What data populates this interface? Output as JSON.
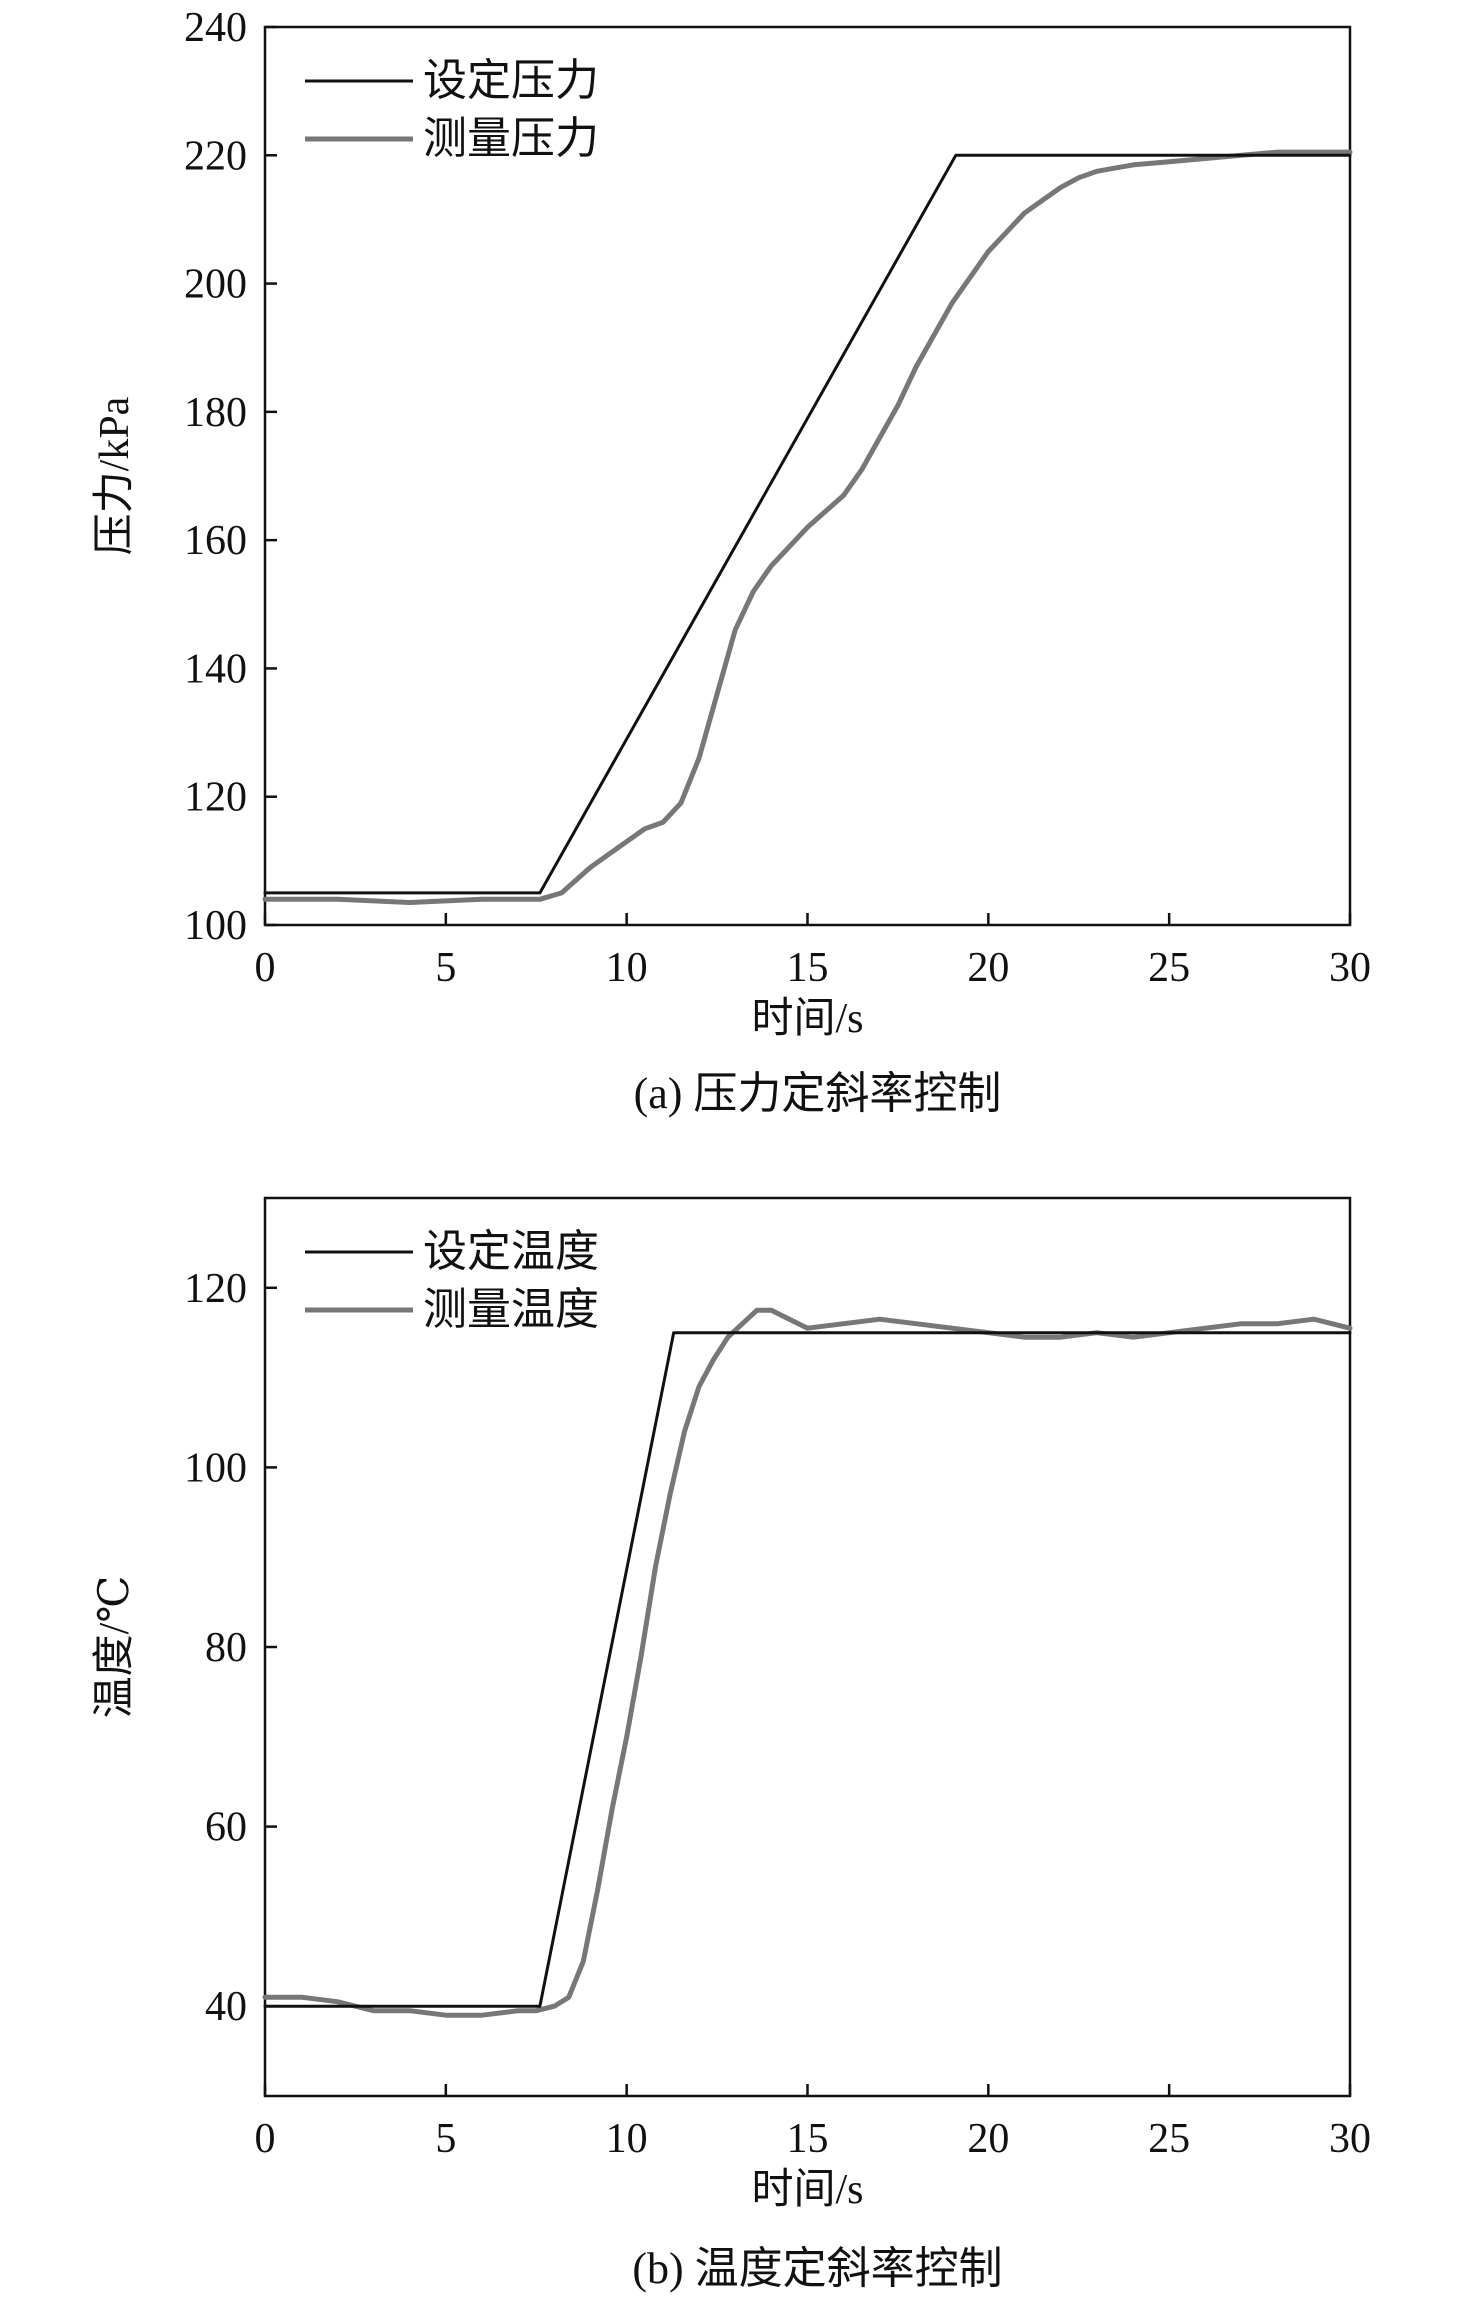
{
  "chart_data": [
    {
      "type": "line",
      "caption": "(a) 压力定斜率控制",
      "xlabel": "时间/s",
      "ylabel": "压力/kPa",
      "xlim": [
        0,
        30
      ],
      "ylim": [
        100,
        240
      ],
      "xticks": [
        "0",
        "5",
        "10",
        "15",
        "20",
        "25",
        "30"
      ],
      "yticks": [
        "100",
        "120",
        "140",
        "160",
        "180",
        "200",
        "220",
        "240"
      ],
      "legend": {
        "position": "top-left"
      },
      "series": [
        {
          "name": "设定压力",
          "color": "#111111",
          "x": [
            0,
            7.6,
            19.1,
            30
          ],
          "y": [
            105,
            105,
            220,
            220
          ]
        },
        {
          "name": "测量压力",
          "color": "#777777",
          "x": [
            0,
            2,
            4,
            6,
            7.6,
            8.2,
            8.6,
            9,
            9.5,
            10,
            10.5,
            11,
            11.5,
            12,
            12.5,
            13,
            13.5,
            14,
            14.5,
            15,
            15.5,
            16,
            16.5,
            17,
            17.5,
            18,
            18.5,
            19,
            19.5,
            20,
            20.5,
            21,
            21.5,
            22,
            22.5,
            23,
            23.5,
            24,
            25,
            26,
            27,
            28,
            29,
            30
          ],
          "y": [
            104,
            104,
            103.5,
            104,
            104,
            105,
            107,
            109,
            111,
            113,
            115,
            116,
            119,
            126,
            136,
            146,
            152,
            156,
            159,
            162,
            164.5,
            167,
            171,
            176,
            181,
            187,
            192,
            197,
            201,
            205,
            208,
            211,
            213,
            215,
            216.5,
            217.5,
            218,
            218.5,
            219,
            219.5,
            220,
            220.5,
            220.5,
            220.5
          ]
        }
      ]
    },
    {
      "type": "line",
      "caption": "(b) 温度定斜率控制",
      "xlabel": "时间/s",
      "ylabel": "温度/℃",
      "xlim": [
        0,
        30
      ],
      "ylim": [
        30,
        130
      ],
      "xticks": [
        "0",
        "5",
        "10",
        "15",
        "20",
        "25",
        "30"
      ],
      "yticks": [
        "40",
        "60",
        "80",
        "100",
        "120"
      ],
      "legend": {
        "position": "top-left"
      },
      "series": [
        {
          "name": "设定温度",
          "color": "#111111",
          "x": [
            0,
            7.6,
            11.3,
            30
          ],
          "y": [
            40,
            40,
            115,
            115
          ]
        },
        {
          "name": "测量温度",
          "color": "#777777",
          "x": [
            0,
            1,
            2,
            3,
            4,
            5,
            6,
            7,
            7.5,
            8,
            8.4,
            8.8,
            9.2,
            9.6,
            10,
            10.4,
            10.8,
            11.2,
            11.6,
            12,
            12.4,
            12.8,
            13.2,
            13.6,
            14,
            14.5,
            15,
            16,
            17,
            18,
            19,
            20,
            21,
            22,
            23,
            24,
            25,
            26,
            27,
            28,
            29,
            30
          ],
          "y": [
            41,
            41,
            40.5,
            39.5,
            39.5,
            39,
            39,
            39.5,
            39.5,
            40,
            41,
            45,
            53,
            62,
            70,
            79,
            89,
            97,
            104,
            109,
            112,
            114.5,
            116,
            117.5,
            117.5,
            116.5,
            115.5,
            116,
            116.5,
            116,
            115.5,
            115,
            114.5,
            114.5,
            115,
            114.5,
            115,
            115.5,
            116,
            116,
            116.5,
            115.5
          ]
        }
      ]
    }
  ]
}
